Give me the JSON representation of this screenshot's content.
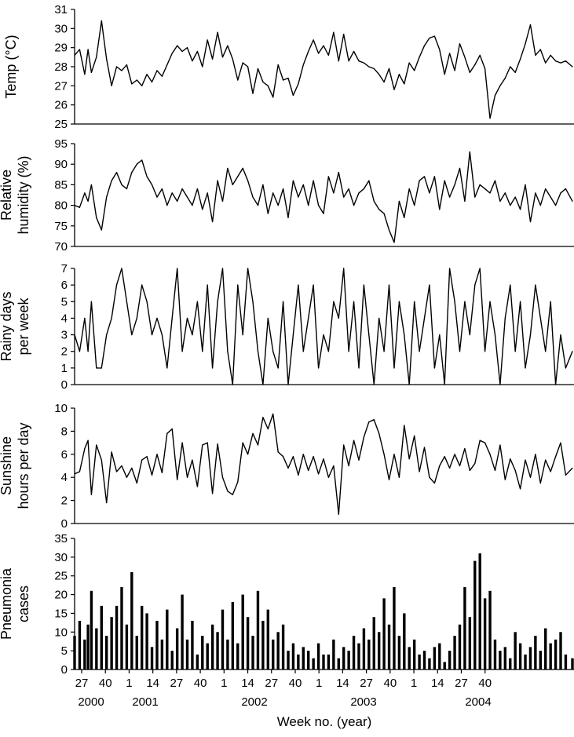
{
  "chart_data": [
    {
      "type": "line",
      "ylabel": "Temp (°C)",
      "ylim": [
        25,
        31
      ],
      "yticks": [
        25,
        26,
        27,
        28,
        29,
        30,
        31
      ],
      "x": [
        0,
        3,
        6,
        8,
        10,
        13,
        16,
        19,
        22,
        25,
        28,
        31,
        34,
        37,
        40,
        43,
        46,
        49,
        52,
        55,
        58,
        61,
        64,
        67,
        70,
        73,
        76,
        79,
        82,
        85,
        88,
        91,
        94,
        97,
        100,
        103,
        106,
        109,
        112,
        115,
        118,
        121,
        124,
        127,
        130,
        133,
        136,
        139,
        142,
        145,
        148,
        151,
        154,
        157,
        160,
        163,
        166,
        169,
        172,
        175,
        178,
        181,
        184,
        187,
        190,
        193,
        196,
        199,
        202,
        205,
        208,
        211,
        214,
        217,
        220,
        223,
        226,
        229,
        232,
        235,
        238,
        241,
        244,
        247,
        250,
        253,
        256,
        259,
        262,
        265,
        268,
        271,
        274,
        277,
        280,
        283,
        286,
        289,
        292,
        296
      ],
      "values": [
        28.6,
        28.9,
        27.6,
        28.9,
        27.7,
        28.5,
        30.4,
        28.4,
        27.0,
        28.0,
        27.8,
        28.1,
        27.1,
        27.3,
        27.0,
        27.6,
        27.2,
        27.8,
        27.5,
        28.1,
        28.7,
        29.1,
        28.8,
        29.0,
        28.3,
        28.8,
        28.0,
        29.4,
        28.4,
        29.8,
        28.5,
        29.1,
        28.4,
        27.3,
        28.2,
        28.0,
        26.6,
        27.9,
        27.2,
        27.0,
        26.4,
        28.1,
        27.3,
        27.4,
        26.5,
        27.1,
        28.1,
        28.8,
        29.4,
        28.7,
        29.1,
        28.6,
        29.8,
        28.3,
        29.7,
        28.3,
        28.8,
        28.3,
        28.2,
        28.0,
        27.9,
        27.6,
        27.2,
        27.9,
        26.8,
        27.6,
        27.1,
        28.2,
        27.8,
        28.5,
        29.1,
        29.5,
        29.6,
        28.9,
        27.6,
        28.7,
        27.8,
        29.2,
        28.5,
        27.7,
        28.1,
        28.6,
        27.9,
        25.3,
        26.5,
        27.0,
        27.4,
        28.0,
        27.7,
        28.4,
        29.2,
        30.2,
        28.6,
        28.9,
        28.2,
        28.6,
        28.3,
        28.2,
        28.3,
        28.0
      ]
    },
    {
      "type": "line",
      "ylabel": "Relative humidity (%)",
      "ylim": [
        70,
        95
      ],
      "yticks": [
        70,
        75,
        80,
        85,
        90,
        95
      ],
      "x": [
        0,
        3,
        6,
        8,
        10,
        13,
        16,
        19,
        22,
        25,
        28,
        31,
        34,
        37,
        40,
        43,
        46,
        49,
        52,
        55,
        58,
        61,
        64,
        67,
        70,
        73,
        76,
        79,
        82,
        85,
        88,
        91,
        94,
        97,
        100,
        103,
        106,
        109,
        112,
        115,
        118,
        121,
        124,
        127,
        130,
        133,
        136,
        139,
        142,
        145,
        148,
        151,
        154,
        157,
        160,
        163,
        166,
        169,
        172,
        175,
        178,
        181,
        184,
        187,
        190,
        193,
        196,
        199,
        202,
        205,
        208,
        211,
        214,
        217,
        220,
        223,
        226,
        229,
        232,
        235,
        238,
        241,
        244,
        247,
        250,
        253,
        256,
        259,
        262,
        265,
        268,
        271,
        274,
        277,
        280,
        283,
        286,
        289,
        292,
        296
      ],
      "values": [
        80,
        79.5,
        83,
        81,
        85,
        77,
        74,
        82,
        86,
        88,
        85,
        84,
        88,
        90,
        91,
        87,
        85,
        82,
        84,
        80,
        83,
        81,
        84,
        82,
        80,
        84,
        79,
        83,
        76,
        86,
        81,
        89,
        85,
        87,
        89,
        86,
        82,
        80,
        85,
        78,
        83,
        80,
        84,
        77,
        86,
        82,
        85,
        80,
        86,
        80,
        78,
        87,
        83,
        88,
        82,
        84,
        80,
        83,
        84,
        86,
        81,
        79,
        78,
        74,
        71,
        81,
        77,
        84,
        80,
        86,
        87,
        83,
        87,
        79,
        86,
        82,
        85,
        89,
        81,
        93,
        82,
        85,
        84,
        83,
        86,
        81,
        83,
        80,
        82,
        79,
        85,
        76,
        83,
        80,
        84,
        82,
        80,
        83,
        84,
        81
      ]
    },
    {
      "type": "line",
      "ylabel": "Rainy days per week",
      "ylim": [
        0,
        7
      ],
      "yticks": [
        0,
        1,
        2,
        3,
        4,
        5,
        6,
        7
      ],
      "x": [
        0,
        3,
        6,
        8,
        10,
        13,
        16,
        19,
        22,
        25,
        28,
        31,
        34,
        37,
        40,
        43,
        46,
        49,
        52,
        55,
        58,
        61,
        64,
        67,
        70,
        73,
        76,
        79,
        82,
        85,
        88,
        91,
        94,
        97,
        100,
        103,
        106,
        109,
        112,
        115,
        118,
        121,
        124,
        127,
        130,
        133,
        136,
        139,
        142,
        145,
        148,
        151,
        154,
        157,
        160,
        163,
        166,
        169,
        172,
        175,
        178,
        181,
        184,
        187,
        190,
        193,
        196,
        199,
        202,
        205,
        208,
        211,
        214,
        217,
        220,
        223,
        226,
        229,
        232,
        235,
        238,
        241,
        244,
        247,
        250,
        253,
        256,
        259,
        262,
        265,
        268,
        271,
        274,
        277,
        280,
        283,
        286,
        289,
        292,
        296
      ],
      "values": [
        3,
        2,
        4,
        2,
        5,
        1,
        1,
        3,
        4,
        6,
        7,
        5,
        3,
        4,
        6,
        5,
        3,
        4,
        3,
        1,
        4,
        7,
        2,
        4,
        3,
        5,
        2,
        6,
        1,
        5,
        7,
        2,
        0,
        6,
        3,
        7,
        5,
        2,
        0,
        4,
        2,
        1,
        5,
        0,
        3,
        6,
        2,
        4,
        6,
        1,
        3,
        2,
        5,
        4,
        7,
        2,
        5,
        1,
        6,
        3,
        0,
        4,
        2,
        6,
        1,
        5,
        3,
        0,
        5,
        2,
        4,
        6,
        1,
        3,
        0,
        7,
        5,
        2,
        5,
        3,
        6,
        7,
        2,
        5,
        3,
        0,
        4,
        6,
        2,
        5,
        1,
        3,
        6,
        4,
        2,
        5,
        0,
        3,
        1,
        2
      ]
    },
    {
      "type": "line",
      "ylabel": "Sunshine hours per day",
      "ylim": [
        0,
        10
      ],
      "yticks": [
        0,
        2,
        4,
        6,
        8,
        10
      ],
      "x": [
        0,
        3,
        6,
        8,
        10,
        13,
        16,
        19,
        22,
        25,
        28,
        31,
        34,
        37,
        40,
        43,
        46,
        49,
        52,
        55,
        58,
        61,
        64,
        67,
        70,
        73,
        76,
        79,
        82,
        85,
        88,
        91,
        94,
        97,
        100,
        103,
        106,
        109,
        112,
        115,
        118,
        121,
        124,
        127,
        130,
        133,
        136,
        139,
        142,
        145,
        148,
        151,
        154,
        157,
        160,
        163,
        166,
        169,
        172,
        175,
        178,
        181,
        184,
        187,
        190,
        193,
        196,
        199,
        202,
        205,
        208,
        211,
        214,
        217,
        220,
        223,
        226,
        229,
        232,
        235,
        238,
        241,
        244,
        247,
        250,
        253,
        256,
        259,
        262,
        265,
        268,
        271,
        274,
        277,
        280,
        283,
        286,
        289,
        292,
        296
      ],
      "values": [
        4.3,
        4.5,
        6.5,
        7.2,
        2.5,
        6.8,
        5.5,
        1.8,
        6.2,
        4.5,
        5.0,
        4.0,
        4.8,
        3.5,
        5.5,
        5.8,
        4.2,
        6.0,
        4.4,
        7.8,
        8.2,
        3.8,
        7.0,
        4.0,
        5.5,
        3.2,
        6.8,
        7.0,
        2.6,
        6.9,
        4.0,
        2.8,
        2.5,
        3.6,
        7.0,
        6.0,
        7.8,
        6.8,
        9.2,
        8.2,
        9.5,
        6.2,
        5.8,
        4.8,
        5.8,
        4.2,
        6.0,
        4.6,
        5.8,
        4.3,
        5.6,
        4.0,
        5.0,
        0.8,
        6.8,
        5.0,
        7.2,
        5.5,
        7.5,
        8.8,
        9.0,
        7.8,
        6.0,
        3.8,
        6.0,
        4.0,
        8.5,
        5.6,
        7.6,
        4.5,
        6.6,
        4.0,
        3.5,
        5.0,
        5.8,
        4.8,
        6.0,
        5.0,
        6.5,
        4.6,
        5.2,
        7.2,
        7.0,
        6.0,
        4.6,
        6.8,
        3.8,
        5.6,
        4.6,
        3.0,
        5.5,
        4.0,
        6.0,
        3.5,
        5.5,
        4.5,
        5.8,
        7.0,
        4.2,
        4.8
      ]
    },
    {
      "type": "bar",
      "ylabel": "Pneumonia cases",
      "ylim": [
        0,
        35
      ],
      "yticks": [
        0,
        5,
        10,
        15,
        20,
        25,
        30,
        35
      ],
      "x": [
        0,
        3,
        6,
        8,
        10,
        13,
        16,
        19,
        22,
        25,
        28,
        31,
        34,
        37,
        40,
        43,
        46,
        49,
        52,
        55,
        58,
        61,
        64,
        67,
        70,
        73,
        76,
        79,
        82,
        85,
        88,
        91,
        94,
        97,
        100,
        103,
        106,
        109,
        112,
        115,
        118,
        121,
        124,
        127,
        130,
        133,
        136,
        139,
        142,
        145,
        148,
        151,
        154,
        157,
        160,
        163,
        166,
        169,
        172,
        175,
        178,
        181,
        184,
        187,
        190,
        193,
        196,
        199,
        202,
        205,
        208,
        211,
        214,
        217,
        220,
        223,
        226,
        229,
        232,
        235,
        238,
        241,
        244,
        247,
        250,
        253,
        256,
        259,
        262,
        265,
        268,
        271,
        274,
        277,
        280,
        283,
        286,
        289,
        292,
        296
      ],
      "values": [
        9,
        13,
        8,
        12,
        21,
        11,
        17,
        9,
        14,
        17,
        22,
        12,
        26,
        9,
        17,
        15,
        6,
        13,
        8,
        16,
        5,
        11,
        20,
        8,
        13,
        4,
        9,
        7,
        12,
        10,
        16,
        8,
        18,
        7,
        20,
        14,
        9,
        21,
        13,
        16,
        8,
        10,
        12,
        5,
        7,
        4,
        6,
        5,
        3,
        7,
        4,
        4,
        8,
        3,
        6,
        5,
        9,
        7,
        11,
        8,
        14,
        10,
        19,
        12,
        22,
        9,
        15,
        6,
        8,
        4,
        5,
        3,
        6,
        7,
        2,
        5,
        9,
        12,
        22,
        14,
        29,
        31,
        19,
        21,
        8,
        5,
        6,
        3,
        10,
        7,
        4,
        6,
        9,
        5,
        11,
        7,
        8,
        10,
        4,
        3
      ]
    }
  ],
  "x_tick_labels": [
    "27",
    "40",
    "1",
    "14",
    "27",
    "40",
    "1",
    "14",
    "27",
    "40",
    "1",
    "14",
    "27",
    "40",
    "1",
    "14",
    "27",
    "40"
  ],
  "year_labels": [
    "2000",
    "2001",
    "2002",
    "2003",
    "2004"
  ],
  "xlabel": "Week no. (year)"
}
